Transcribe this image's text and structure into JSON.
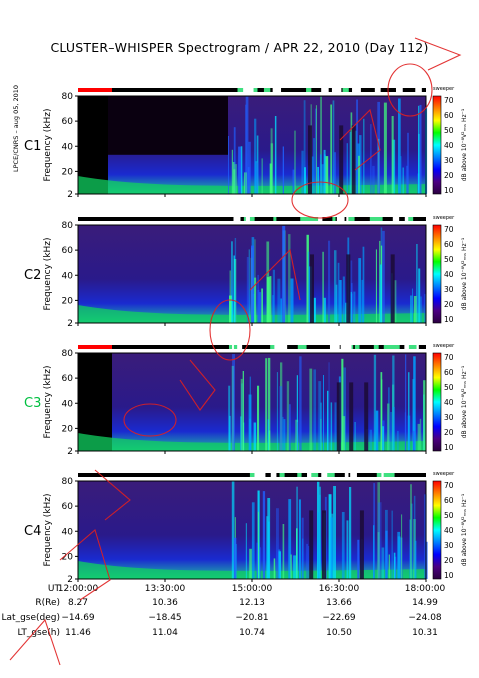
{
  "title": "CLUSTER–WHISPER Spectrogram / APR 22, 2010 (Day 112)",
  "side_label": "LPCE/CNRS – aug 05, 2010",
  "colorbar": {
    "mode_label": "sweeper",
    "unit_label": "dB above 10⁻⁸V²ᵣₘₛ Hz⁻¹",
    "ticks": [
      "70",
      "60",
      "50",
      "40",
      "30",
      "20",
      "10"
    ],
    "colors": [
      "#ff0000",
      "#ff8000",
      "#ffff00",
      "#00ff00",
      "#00ffff",
      "#0080ff",
      "#0000ff",
      "#4b0082",
      "#2a003f"
    ]
  },
  "chart_data": [
    {
      "type": "heatmap",
      "spacecraft": "C1",
      "spacecraft_color": "#000000",
      "ylabel": "Frequency (kHz)",
      "yticks": [
        "80",
        "60",
        "40",
        "20",
        "2"
      ],
      "ylim": [
        2,
        80
      ],
      "xlim": [
        "12:00:00",
        "18:00:00"
      ]
    },
    {
      "type": "heatmap",
      "spacecraft": "C2",
      "spacecraft_color": "#000000",
      "ylabel": "Frequency (kHz)",
      "yticks": [
        "80",
        "60",
        "40",
        "20",
        "2"
      ],
      "ylim": [
        2,
        80
      ],
      "xlim": [
        "12:00:00",
        "18:00:00"
      ]
    },
    {
      "type": "heatmap",
      "spacecraft": "C3",
      "spacecraft_color": "#00c040",
      "ylabel": "Frequency (kHz)",
      "yticks": [
        "80",
        "60",
        "40",
        "20",
        "2"
      ],
      "ylim": [
        2,
        80
      ],
      "xlim": [
        "12:00:00",
        "18:00:00"
      ]
    },
    {
      "type": "heatmap",
      "spacecraft": "C4",
      "spacecraft_color": "#000000",
      "ylabel": "Frequency (kHz)",
      "yticks": [
        "80",
        "60",
        "40",
        "20",
        "2"
      ],
      "ylim": [
        2,
        80
      ],
      "xlim": [
        "12:00:00",
        "18:00:00"
      ]
    }
  ],
  "ephemeris": {
    "ut_label": "UT",
    "times": [
      "12:00:00",
      "13:30:00",
      "15:00:00",
      "16:30:00",
      "18:00:00"
    ],
    "rows": [
      {
        "label": "R(Re)",
        "values": [
          "8.27",
          "10.36",
          "12.13",
          "13.66",
          "14.99"
        ]
      },
      {
        "label": "Lat_gse(deg)",
        "values": [
          "−14.69",
          "−18.45",
          "−20.81",
          "−22.69",
          "−24.08"
        ]
      },
      {
        "label": "LT_gse(h)",
        "values": [
          "11.46",
          "11.04",
          "10.74",
          "10.50",
          "10.31"
        ]
      }
    ]
  }
}
